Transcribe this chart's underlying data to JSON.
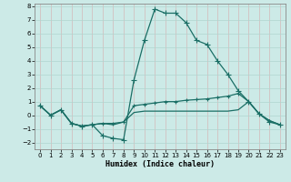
{
  "xlabel": "Humidex (Indice chaleur)",
  "background_color": "#cceae7",
  "grid_color": "#b0d5d0",
  "line_color": "#1a6e65",
  "xlim": [
    -0.5,
    23.5
  ],
  "ylim": [
    -2.5,
    8.2
  ],
  "xticks": [
    0,
    1,
    2,
    3,
    4,
    5,
    6,
    7,
    8,
    9,
    10,
    11,
    12,
    13,
    14,
    15,
    16,
    17,
    18,
    19,
    20,
    21,
    22,
    23
  ],
  "yticks": [
    -2,
    -1,
    0,
    1,
    2,
    3,
    4,
    5,
    6,
    7,
    8
  ],
  "curve1_x": [
    0,
    1,
    2,
    3,
    4,
    5,
    6,
    7,
    8,
    9,
    10,
    11,
    12,
    13,
    14,
    15,
    16,
    17,
    18,
    19,
    20,
    21,
    22,
    23
  ],
  "curve1_y": [
    0.7,
    0.0,
    0.4,
    -0.6,
    -0.8,
    -0.7,
    -1.5,
    -1.7,
    -1.8,
    2.6,
    5.5,
    7.8,
    7.5,
    7.5,
    6.8,
    5.5,
    5.2,
    4.0,
    3.0,
    1.8,
    1.0,
    0.1,
    -0.5,
    -0.7
  ],
  "curve2_x": [
    0,
    1,
    2,
    3,
    4,
    5,
    6,
    7,
    8,
    9,
    10,
    11,
    12,
    13,
    14,
    15,
    16,
    17,
    18,
    19,
    20,
    21,
    22,
    23
  ],
  "curve2_y": [
    0.7,
    0.0,
    0.4,
    -0.6,
    -0.8,
    -0.7,
    -0.6,
    -0.6,
    -0.5,
    0.7,
    0.8,
    0.9,
    1.0,
    1.0,
    1.1,
    1.15,
    1.2,
    1.3,
    1.4,
    1.6,
    1.0,
    0.1,
    -0.4,
    -0.7
  ],
  "curve3_x": [
    0,
    1,
    2,
    3,
    4,
    5,
    6,
    7,
    8,
    9,
    10,
    11,
    12,
    13,
    14,
    15,
    16,
    17,
    18,
    19,
    20,
    21,
    22,
    23
  ],
  "curve3_y": [
    0.7,
    0.0,
    0.4,
    -0.6,
    -0.8,
    -0.7,
    -0.6,
    -0.7,
    -0.5,
    0.2,
    0.3,
    0.3,
    0.3,
    0.3,
    0.3,
    0.3,
    0.3,
    0.3,
    0.3,
    0.4,
    1.0,
    0.1,
    -0.4,
    -0.7
  ]
}
